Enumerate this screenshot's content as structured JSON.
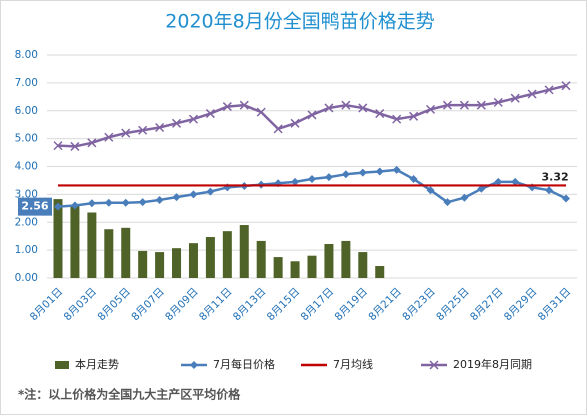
{
  "chart_data": {
    "type": "combo",
    "title": "2020年8月份全国鸭苗价格走势",
    "footnote": "*注：以上价格为全国九大主产区平均价格",
    "categories": [
      "8月01日",
      null,
      "8月03日",
      null,
      "8月05日",
      null,
      "8月07日",
      null,
      "8月09日",
      null,
      "8月11日",
      null,
      "8月13日",
      null,
      "8月15日",
      null,
      "8月17日",
      null,
      "8月19日",
      null,
      "8月21日",
      null,
      "8月23日",
      null,
      "8月25日",
      null,
      "8月27日",
      null,
      "8月29日",
      null,
      "8月31日"
    ],
    "ylim": [
      0,
      8
    ],
    "yticks": [
      {
        "value": 0,
        "label": "0.00"
      },
      {
        "value": 1,
        "label": "1.00"
      },
      {
        "value": 2,
        "label": "2.00"
      },
      {
        "value": 3,
        "label": "3.00"
      },
      {
        "value": 4,
        "label": "4.00"
      },
      {
        "value": 5,
        "label": "5.00"
      },
      {
        "value": 6,
        "label": "6.00"
      },
      {
        "value": 7,
        "label": "7.00"
      },
      {
        "value": 8,
        "label": "8.00"
      }
    ],
    "grid": true,
    "legend": "bottom",
    "series": [
      {
        "name": "本月走势",
        "type": "bar",
        "color": "#4f6228",
        "values": [
          2.83,
          2.6,
          2.35,
          1.75,
          1.8,
          0.97,
          0.93,
          1.07,
          1.25,
          1.47,
          1.68,
          1.9,
          1.33,
          0.75,
          0.6,
          0.8,
          1.22,
          1.33,
          0.93,
          0.43,
          null,
          null,
          null,
          null,
          null,
          null,
          null,
          null,
          null,
          null,
          null
        ]
      },
      {
        "name": "7月每日价格",
        "type": "line",
        "marker": "diamond",
        "color": "#4a7ebb",
        "values": [
          2.56,
          2.6,
          2.68,
          2.7,
          2.7,
          2.72,
          2.8,
          2.9,
          3.0,
          3.1,
          3.25,
          3.3,
          3.35,
          3.4,
          3.45,
          3.55,
          3.62,
          3.72,
          3.78,
          3.82,
          3.88,
          3.55,
          3.15,
          2.72,
          2.88,
          3.2,
          3.45,
          3.45,
          3.25,
          3.15,
          2.85
        ],
        "value_labels": [
          "2.56",
          null,
          null,
          null,
          null,
          null,
          null,
          null,
          null,
          null,
          null,
          null,
          null,
          null,
          null,
          null,
          null,
          null,
          null,
          null,
          null,
          null,
          null,
          null,
          null,
          null,
          null,
          null,
          null,
          null,
          null
        ]
      },
      {
        "name": "7月均线",
        "type": "line",
        "marker": "none",
        "color": "#c00000",
        "values": [
          3.32,
          3.32,
          3.32,
          3.32,
          3.32,
          3.32,
          3.32,
          3.32,
          3.32,
          3.32,
          3.32,
          3.32,
          3.32,
          3.32,
          3.32,
          3.32,
          3.32,
          3.32,
          3.32,
          3.32,
          3.32,
          3.32,
          3.32,
          3.32,
          3.32,
          3.32,
          3.32,
          3.32,
          3.32,
          3.32,
          3.32
        ],
        "value_labels": [
          null,
          null,
          null,
          null,
          null,
          null,
          null,
          null,
          null,
          null,
          null,
          null,
          null,
          null,
          null,
          null,
          null,
          null,
          null,
          null,
          null,
          null,
          null,
          null,
          null,
          null,
          null,
          null,
          null,
          "3.32",
          null
        ]
      },
      {
        "name": "2019年8月同期",
        "type": "line",
        "marker": "x",
        "color": "#8064a2",
        "values": [
          4.75,
          4.72,
          4.85,
          5.05,
          5.2,
          5.3,
          5.4,
          5.55,
          5.7,
          5.9,
          6.15,
          6.2,
          5.95,
          5.35,
          5.55,
          5.85,
          6.1,
          6.2,
          6.1,
          5.9,
          5.7,
          5.8,
          6.05,
          6.2,
          6.2,
          6.2,
          6.3,
          6.45,
          6.6,
          6.75,
          6.9
        ]
      }
    ]
  }
}
